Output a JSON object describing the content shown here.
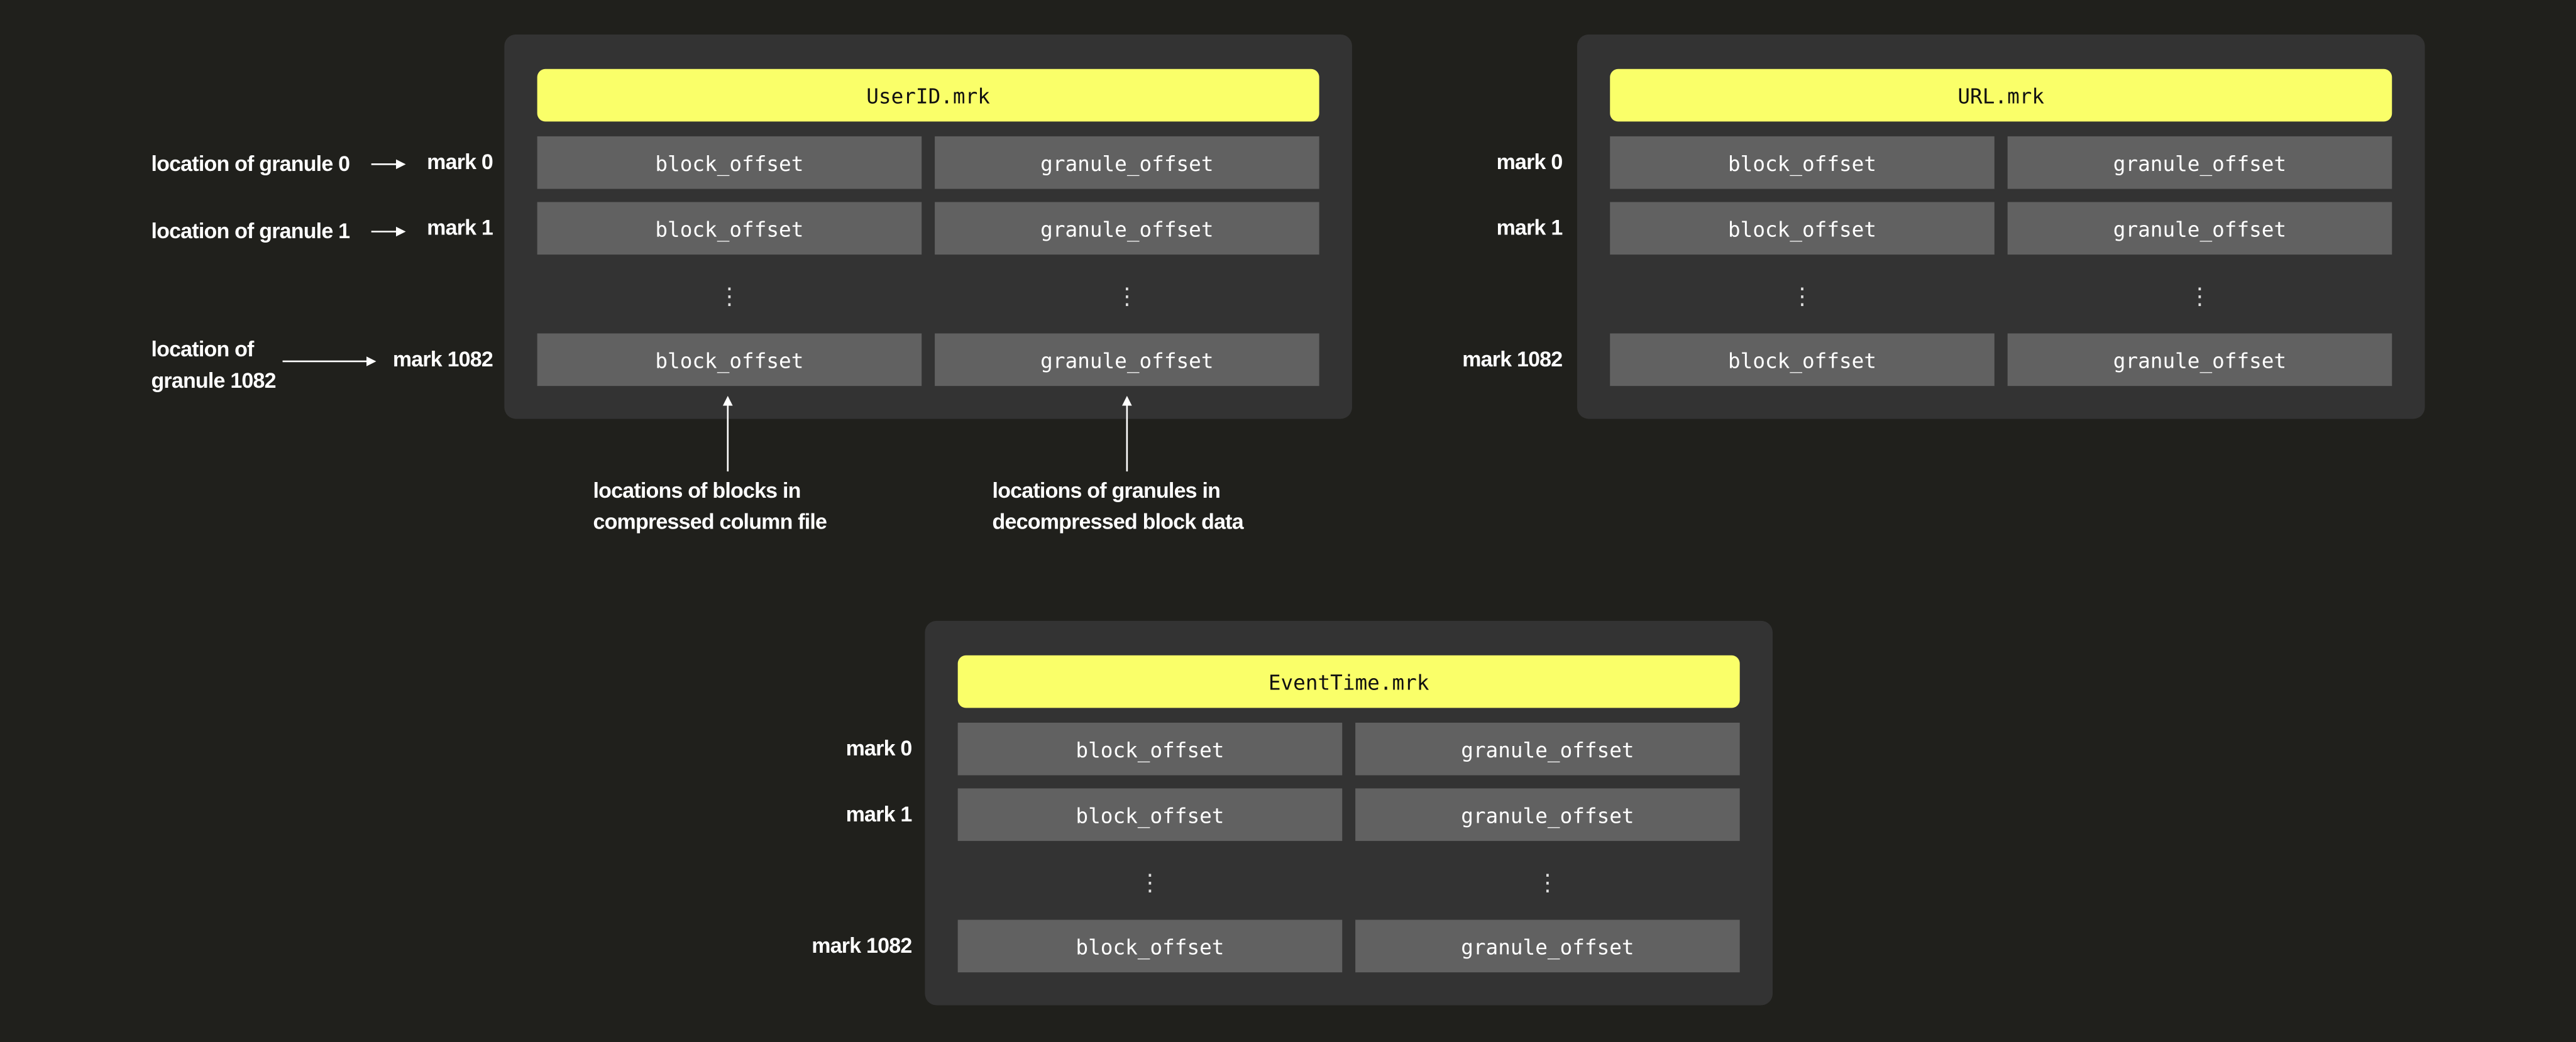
{
  "colors": {
    "background": "#20201c",
    "panel": "#333333",
    "cell": "#616161",
    "header": "#faff69",
    "text": "#ffffff"
  },
  "panels": [
    {
      "title": "UserID.mrk",
      "marks": [
        "mark 0",
        "mark 1",
        "mark 1082"
      ]
    },
    {
      "title": "URL.mrk",
      "marks": [
        "mark 0",
        "mark 1",
        "mark 1082"
      ]
    },
    {
      "title": "EventTime.mrk",
      "marks": [
        "mark 0",
        "mark 1",
        "mark 1082"
      ]
    }
  ],
  "cell_labels": {
    "left": "block_offset",
    "right": "granule_offset",
    "ellipsis": "⋮"
  },
  "granule_labels": {
    "g0": "location of granule 0",
    "g1": "location of granule 1",
    "g1082_line1": "location of",
    "g1082_line2": "granule 1082"
  },
  "captions": {
    "blocks_line1": "locations of blocks in",
    "blocks_line2": "compressed column file",
    "granules_line1": "locations of granules in",
    "granules_line2": "decompressed block data"
  }
}
